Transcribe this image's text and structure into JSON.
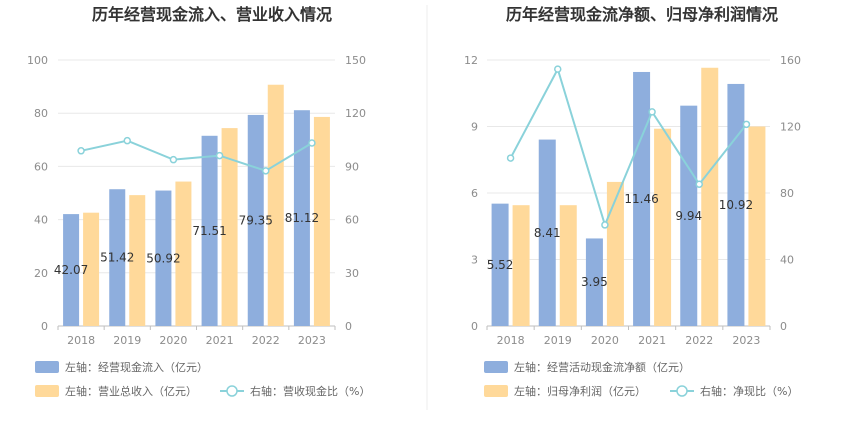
{
  "colors": {
    "bar_primary": "#8eaedd",
    "bar_secondary": "#ffd99a",
    "line": "#8ad2da",
    "grid": "#e8e8e8",
    "axis": "#bfbfbf",
    "text": "#333333",
    "tick": "#8c8c8c",
    "divider": "#eeeeee"
  },
  "chart_data": [
    {
      "type": "bar",
      "title": "历年经营现金流入、营业收入情况",
      "categories": [
        "2018",
        "2019",
        "2020",
        "2021",
        "2022",
        "2023"
      ],
      "y_left": {
        "min": 0,
        "max": 100,
        "ticks": [
          "0",
          "20",
          "40",
          "60",
          "80",
          "100"
        ]
      },
      "y_right": {
        "min": 0,
        "max": 150,
        "ticks": [
          "0",
          "30",
          "60",
          "90",
          "120",
          "150"
        ]
      },
      "series": [
        {
          "name": "左轴：经营现金流入（亿元）",
          "type": "bar",
          "axis": "left",
          "color_key": "bar_primary",
          "values": [
            42.07,
            51.42,
            50.92,
            71.51,
            79.35,
            81.12
          ],
          "labels": [
            "42.07",
            "51.42",
            "50.92",
            "71.51",
            "79.35",
            "81.12"
          ]
        },
        {
          "name": "左轴：营业总收入（亿元）",
          "type": "bar",
          "axis": "left",
          "color_key": "bar_secondary",
          "values": [
            42.6,
            49.2,
            54.3,
            74.4,
            90.7,
            78.6
          ]
        },
        {
          "name": "右轴：营收现金比（%）",
          "type": "line",
          "axis": "right",
          "color_key": "line",
          "values": [
            98.8,
            104.5,
            93.8,
            96.1,
            87.5,
            103.2
          ]
        }
      ],
      "legend": [
        {
          "label": "左轴：经营现金流入（亿元）",
          "kind": "bar",
          "color_key": "bar_primary",
          "icon": "bar-swatch-icon"
        },
        {
          "label": "左轴：营业总收入（亿元）",
          "kind": "bar",
          "color_key": "bar_secondary",
          "icon": "bar-swatch-icon"
        },
        {
          "label": "右轴：营收现金比（%）",
          "kind": "line",
          "color_key": "line",
          "icon": "line-marker-icon"
        }
      ]
    },
    {
      "type": "bar",
      "title": "历年经营现金流净额、归母净利润情况",
      "categories": [
        "2018",
        "2019",
        "2020",
        "2021",
        "2022",
        "2023"
      ],
      "y_left": {
        "min": 0,
        "max": 12,
        "ticks": [
          "0",
          "3",
          "6",
          "9",
          "12"
        ]
      },
      "y_right": {
        "min": 0,
        "max": 160,
        "ticks": [
          "0",
          "40",
          "80",
          "120",
          "160"
        ]
      },
      "series": [
        {
          "name": "左轴：经营活动现金流净额（亿元）",
          "type": "bar",
          "axis": "left",
          "color_key": "bar_primary",
          "values": [
            5.52,
            8.41,
            3.95,
            11.46,
            9.94,
            10.92
          ],
          "labels": [
            "5.52",
            "8.41",
            "3.95",
            "11.46",
            "9.94",
            "10.92"
          ]
        },
        {
          "name": "左轴：归母净利润（亿元）",
          "type": "bar",
          "axis": "left",
          "color_key": "bar_secondary",
          "values": [
            5.45,
            5.45,
            6.5,
            8.9,
            11.65,
            9.0
          ]
        },
        {
          "name": "右轴：净现比（%）",
          "type": "line",
          "axis": "right",
          "color_key": "line",
          "values": [
            101,
            154.5,
            60.8,
            128.8,
            85.3,
            121.3
          ]
        }
      ],
      "legend": [
        {
          "label": "左轴：经营活动现金流净额（亿元）",
          "kind": "bar",
          "color_key": "bar_primary",
          "icon": "bar-swatch-icon"
        },
        {
          "label": "左轴：归母净利润（亿元）",
          "kind": "bar",
          "color_key": "bar_secondary",
          "icon": "bar-swatch-icon"
        },
        {
          "label": "右轴：净现比（%）",
          "kind": "line",
          "color_key": "line",
          "icon": "line-marker-icon"
        }
      ]
    }
  ]
}
